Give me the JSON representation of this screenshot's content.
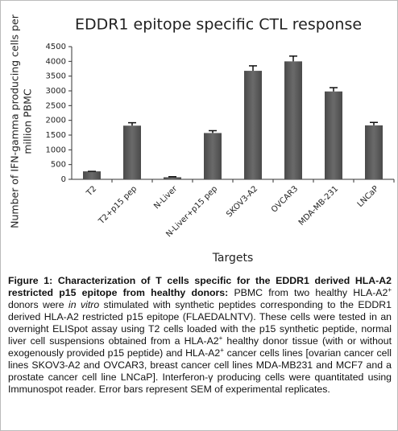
{
  "chart_data": {
    "type": "bar",
    "title": "EDDR1 epitope specific CTL response",
    "ylabel": [
      "Number of IFN-gamma producing cells per",
      "million PBMC"
    ],
    "xlabel": "Targets",
    "categories": [
      "T2",
      "T2+p15 pep",
      "N-Liver",
      "N-Liver+p15 pep",
      "SKOV3-A2",
      "OVCAR3",
      "MDA-MB-231",
      "LNCaP"
    ],
    "values": [
      270,
      1820,
      70,
      1570,
      3680,
      4000,
      2980,
      1830
    ],
    "errors": [
      0,
      100,
      20,
      80,
      170,
      180,
      130,
      100
    ],
    "color": "#4a4a4a",
    "ylim": [
      0,
      4500
    ],
    "yticks": [
      0,
      500,
      1000,
      1500,
      2000,
      2500,
      3000,
      3500,
      4000,
      4500
    ]
  },
  "caption": {
    "heading": "Figure 1: Characterization of T cells specific for the EDDR1 derived HLA-A2 restricted p15 epitope from healthy donors:",
    "body": [
      "PBMC from two healthy HLA-A2",
      "+",
      "donors were",
      "in vitro",
      "stimulated with synthetic peptides corresponding to the EDDR1 derived HLA-A2 restricted p15 epitope (FLAEDALNTV). These cells were tested in an overnight ELISpot assay using T2 cells loaded with the p15 synthetic peptide, normal liver cell suspensions obtained from a HLA-A2",
      "+",
      "healthy donor tissue (with or without exogenously provided p15 peptide) and HLA-A2",
      "+",
      "cancer cells lines [ovarian cancer cell lines SKOV3-A2 and OVCAR3, breast cancer cell lines MDA-MB231 and MCF7 and a prostate cancer cell line LNCaP]. Interferon-γ producing cells were quantitated using Immunospot reader. Error bars represent SEM of experimental replicates."
    ]
  }
}
